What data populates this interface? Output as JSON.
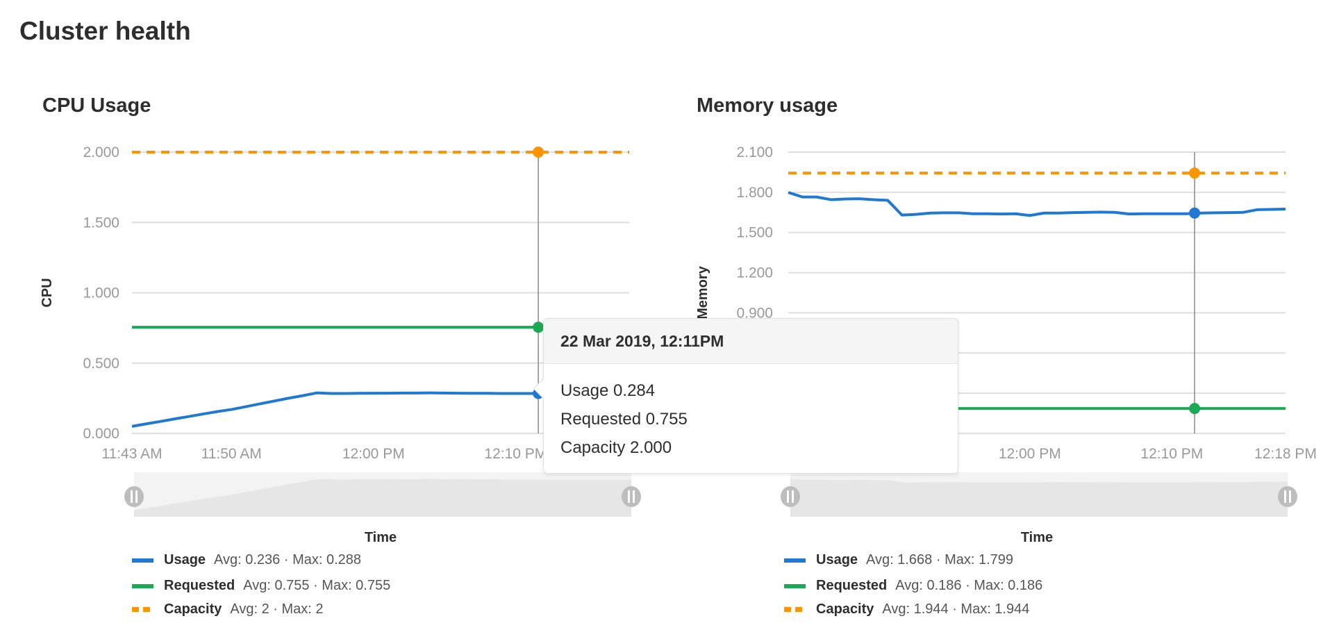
{
  "page_title": "Cluster health",
  "colors": {
    "usage": "#1f78d1",
    "requested": "#1aaa55",
    "capacity": "#fc9403"
  },
  "tooltip": {
    "title": "22 Mar 2019, 12:11PM",
    "rows": [
      {
        "label": "Usage",
        "value": "0.284"
      },
      {
        "label": "Requested",
        "value": "0.755"
      },
      {
        "label": "Capacity",
        "value": "2.000"
      }
    ]
  },
  "chart_data": [
    {
      "type": "line",
      "title": "CPU Usage",
      "ylabel": "CPU",
      "xlabel": "Time",
      "ylim": [
        0,
        2.0
      ],
      "xlim": [
        "11:43",
        "12:18"
      ],
      "grid": true,
      "y_ticks": [
        {
          "value": 0,
          "label": "0.000"
        },
        {
          "value": 0.5,
          "label": "0.500"
        },
        {
          "value": 1.0,
          "label": "1.000"
        },
        {
          "value": 1.5,
          "label": "1.500"
        },
        {
          "value": 2.0,
          "label": "2.000"
        }
      ],
      "x_ticks": [
        {
          "time": "11:43",
          "label": "11:43 AM"
        },
        {
          "time": "11:50",
          "label": "11:50 AM"
        },
        {
          "time": "12:00",
          "label": "12:00 PM"
        },
        {
          "time": "12:10",
          "label": "12:10 PM"
        }
      ],
      "cursor_time": "12:11",
      "legend_position": "bottom-left",
      "series": [
        {
          "name": "Usage",
          "key": "usage",
          "style": "solid",
          "avg": "0.236",
          "max": "0.288",
          "start": "11:43",
          "step_minutes": 1,
          "values": [
            0.05,
            0.068,
            0.085,
            0.103,
            0.12,
            0.138,
            0.155,
            0.17,
            0.19,
            0.21,
            0.23,
            0.25,
            0.268,
            0.288,
            0.284,
            0.284,
            0.285,
            0.286,
            0.286,
            0.287,
            0.287,
            0.288,
            0.287,
            0.286,
            0.285,
            0.285,
            0.284,
            0.284,
            0.284
          ]
        },
        {
          "name": "Requested",
          "key": "requested",
          "style": "solid",
          "avg": "0.755",
          "max": "0.755",
          "start": "11:43",
          "step_minutes": 35,
          "values": [
            0.755,
            0.755
          ]
        },
        {
          "name": "Capacity",
          "key": "capacity",
          "style": "dashed",
          "avg": "2",
          "max": "2",
          "start": "11:43",
          "step_minutes": 35,
          "values": [
            2.0,
            2.0
          ]
        }
      ],
      "legend_text": [
        {
          "name": "Usage",
          "stats": "Avg: 0.236 · Max: 0.288"
        },
        {
          "name": "Requested",
          "stats": "Avg: 0.755 · Max: 0.755"
        },
        {
          "name": "Capacity",
          "stats": "Avg: 2 · Max: 2"
        }
      ]
    },
    {
      "type": "line",
      "title": "Memory usage",
      "ylabel": "Memory",
      "xlabel": "Time",
      "ylim": [
        0,
        2.1
      ],
      "xlim": [
        "11:43",
        "12:18"
      ],
      "grid": true,
      "y_ticks": [
        {
          "value": 0.9,
          "label": "0.900"
        },
        {
          "value": 1.2,
          "label": "1.200"
        },
        {
          "value": 1.5,
          "label": "1.500"
        },
        {
          "value": 1.8,
          "label": "1.800"
        },
        {
          "value": 2.1,
          "label": "2.100"
        }
      ],
      "grid_values": [
        0,
        0.3,
        0.6,
        0.9,
        1.2,
        1.5,
        1.8,
        2.1
      ],
      "x_ticks": [
        {
          "time": "12:00",
          "label": "12:00 PM"
        },
        {
          "time": "12:10",
          "label": "12:10 PM"
        },
        {
          "time": "12:18",
          "label": "12:18 PM"
        }
      ],
      "cursor_time": "12:11",
      "legend_position": "bottom-left",
      "series": [
        {
          "name": "Usage",
          "key": "usage",
          "style": "solid",
          "avg": "1.668",
          "max": "1.799",
          "start": "11:43",
          "step_minutes": 1,
          "values": [
            1.799,
            1.765,
            1.765,
            1.745,
            1.75,
            1.752,
            1.745,
            1.74,
            1.63,
            1.635,
            1.645,
            1.647,
            1.647,
            1.64,
            1.64,
            1.638,
            1.64,
            1.627,
            1.645,
            1.645,
            1.648,
            1.65,
            1.652,
            1.65,
            1.638,
            1.64,
            1.64,
            1.64,
            1.64,
            1.645,
            1.647,
            1.648,
            1.65,
            1.67,
            1.672,
            1.675
          ]
        },
        {
          "name": "Requested",
          "key": "requested",
          "style": "solid",
          "avg": "0.186",
          "max": "0.186",
          "start": "11:43",
          "step_minutes": 35,
          "values": [
            0.186,
            0.186
          ]
        },
        {
          "name": "Capacity",
          "key": "capacity",
          "style": "dashed",
          "avg": "1.944",
          "max": "1.944",
          "start": "11:43",
          "step_minutes": 35,
          "values": [
            1.944,
            1.944
          ]
        }
      ],
      "legend_text": [
        {
          "name": "Usage",
          "stats": "Avg: 1.668 · Max: 1.799"
        },
        {
          "name": "Requested",
          "stats": "Avg: 0.186 · Max: 0.186"
        },
        {
          "name": "Capacity",
          "stats": "Avg: 1.944 · Max: 1.944"
        }
      ]
    }
  ]
}
